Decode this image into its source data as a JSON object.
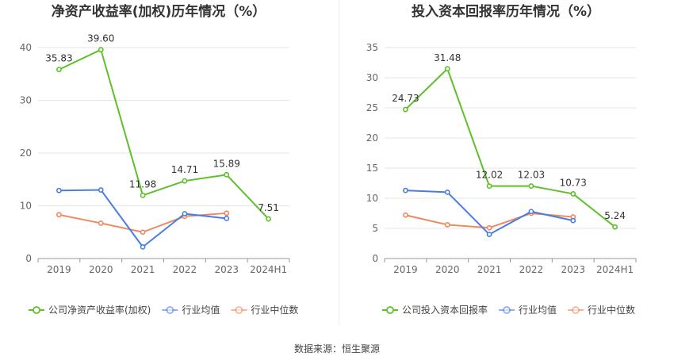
{
  "source_label": "数据来源：恒生聚源",
  "chart_data": [
    {
      "type": "line",
      "title": "净资产收益率(加权)历年情况（%）",
      "categories": [
        "2019",
        "2020",
        "2021",
        "2022",
        "2023",
        "2024H1"
      ],
      "ylim": [
        0,
        40
      ],
      "yticks": [
        0,
        10,
        20,
        30,
        40
      ],
      "grid": true,
      "legend_position": "bottom",
      "series": [
        {
          "name": "公司净资产收益率(加权)",
          "color": "#5ec02a",
          "labels": true,
          "values": [
            35.83,
            39.6,
            11.98,
            14.71,
            15.89,
            7.51
          ]
        },
        {
          "name": "行业均值",
          "color": "#4a7de2",
          "labels": false,
          "values": [
            12.9,
            13.0,
            2.2,
            8.5,
            7.6,
            null
          ]
        },
        {
          "name": "行业中位数",
          "color": "#f0875f",
          "labels": false,
          "values": [
            8.3,
            6.7,
            5.0,
            8.0,
            8.6,
            null
          ]
        }
      ]
    },
    {
      "type": "line",
      "title": "投入资本回报率历年情况（%）",
      "categories": [
        "2019",
        "2020",
        "2021",
        "2022",
        "2023",
        "2024H1"
      ],
      "ylim": [
        0,
        35
      ],
      "yticks": [
        0,
        5,
        10,
        15,
        20,
        25,
        30,
        35
      ],
      "grid": true,
      "legend_position": "bottom",
      "series": [
        {
          "name": "公司投入资本回报率",
          "color": "#5ec02a",
          "labels": true,
          "values": [
            24.73,
            31.48,
            12.02,
            12.03,
            10.73,
            5.24
          ]
        },
        {
          "name": "行业均值",
          "color": "#4a7de2",
          "labels": false,
          "values": [
            11.3,
            11.0,
            4.0,
            7.8,
            6.3,
            null
          ]
        },
        {
          "name": "行业中位数",
          "color": "#f0875f",
          "labels": false,
          "values": [
            7.2,
            5.6,
            5.1,
            7.5,
            6.9,
            null
          ]
        }
      ]
    }
  ]
}
